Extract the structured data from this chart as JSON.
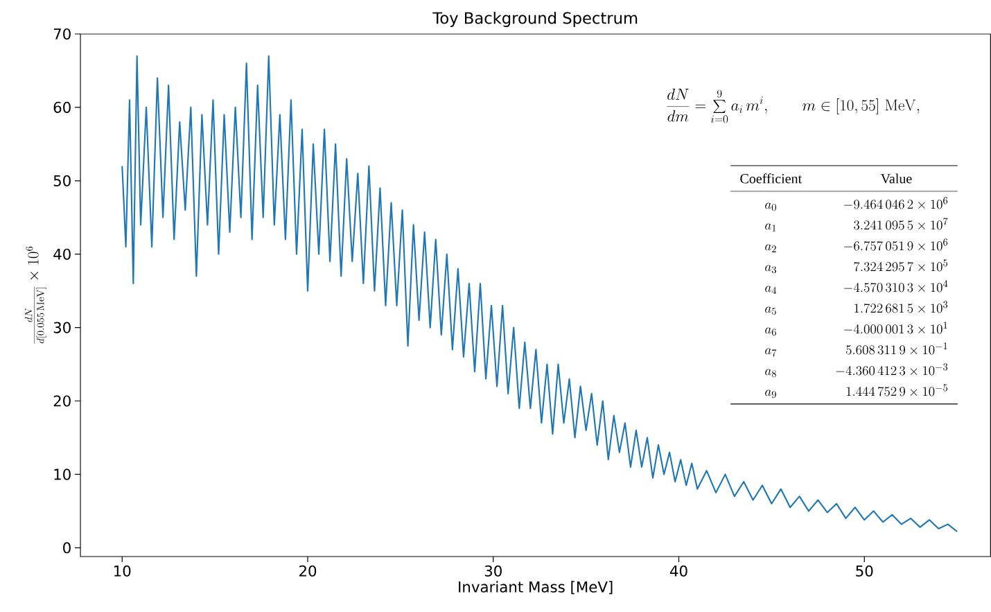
{
  "chart_data": {
    "type": "line",
    "title": "Toy Background Spectrum",
    "xlabel": "Invariant Mass [MeV]",
    "ylabel": "\\frac{dN}{d[0.055\\,\\mathrm{MeV}]}\\times 10^{6}",
    "color": "#1f77b4",
    "xlim": [
      7.75,
      56.8
    ],
    "ylim": [
      -1.2,
      70
    ],
    "xticks": [
      10,
      20,
      30,
      40,
      50
    ],
    "yticks": [
      0,
      10,
      20,
      30,
      40,
      50,
      60,
      70
    ],
    "x": [
      10.0,
      10.2,
      10.4,
      10.6,
      10.8,
      11.0,
      11.3,
      11.6,
      11.9,
      12.2,
      12.5,
      12.8,
      13.1,
      13.4,
      13.7,
      14.0,
      14.3,
      14.6,
      14.9,
      15.2,
      15.5,
      15.8,
      16.1,
      16.4,
      16.7,
      17.0,
      17.3,
      17.6,
      17.9,
      18.2,
      18.5,
      18.8,
      19.1,
      19.4,
      19.7,
      20.0,
      20.3,
      20.6,
      20.9,
      21.2,
      21.5,
      21.8,
      22.1,
      22.4,
      22.7,
      23.0,
      23.3,
      23.6,
      23.9,
      24.2,
      24.5,
      24.8,
      25.1,
      25.4,
      25.7,
      26.0,
      26.3,
      26.6,
      26.9,
      27.2,
      27.5,
      27.8,
      28.1,
      28.4,
      28.7,
      29.0,
      29.3,
      29.6,
      29.9,
      30.2,
      30.5,
      30.8,
      31.1,
      31.4,
      31.7,
      32.0,
      32.3,
      32.6,
      32.9,
      33.2,
      33.5,
      33.8,
      34.1,
      34.4,
      34.7,
      35.0,
      35.3,
      35.6,
      35.9,
      36.2,
      36.5,
      36.8,
      37.1,
      37.4,
      37.7,
      38.0,
      38.3,
      38.6,
      38.9,
      39.2,
      39.5,
      39.8,
      40.1,
      40.4,
      40.7,
      41.0,
      41.5,
      42.0,
      42.5,
      43.0,
      43.5,
      44.0,
      44.5,
      45.0,
      45.5,
      46.0,
      46.5,
      47.0,
      47.5,
      48.0,
      48.5,
      49.0,
      49.5,
      50.0,
      50.5,
      51.0,
      51.5,
      52.0,
      52.5,
      53.0,
      53.5,
      54.0,
      54.5,
      55.0
    ],
    "values": [
      52,
      41,
      61,
      36,
      67,
      44,
      60,
      41,
      64,
      45,
      63,
      42,
      58,
      46,
      60,
      37,
      59,
      44,
      61,
      40,
      59,
      43,
      60,
      45,
      66,
      42,
      63,
      45,
      67,
      44,
      59,
      42,
      61,
      40,
      57,
      35,
      55,
      40,
      57,
      39,
      55,
      37,
      53,
      39,
      51,
      36,
      52,
      35,
      49,
      33,
      47,
      33,
      46,
      27.5,
      44,
      31,
      43,
      30,
      42,
      29,
      40,
      27,
      38,
      26,
      36,
      24,
      36,
      23,
      33,
      22,
      33,
      21,
      30,
      19,
      28,
      19,
      27,
      17,
      25,
      15.5,
      25,
      17,
      23,
      15,
      22,
      16,
      21,
      14,
      20,
      12,
      18,
      13,
      17,
      11,
      16,
      11,
      15,
      9.5,
      14,
      10,
      13,
      9,
      12,
      8.5,
      11.5,
      8,
      10.5,
      7.5,
      10,
      7,
      9,
      6.5,
      8.5,
      6,
      8,
      5.5,
      7,
      5,
      6.5,
      4.8,
      6,
      4,
      5.5,
      3.8,
      5,
      3.5,
      4.5,
      3.2,
      4,
      2.8,
      3.8,
      2.6,
      3.2,
      2.2
    ],
    "annotations": [
      "\\frac{dN}{dm} = \\sum_{i=0}^{9} a_i\\, m^i, \\qquad m \\in [10,55]\\ \\mathrm{MeV},",
      "Coefficient",
      "Value",
      "a_0",
      "-9.464\\,046\\,2 \\times 10^{6}",
      "a_1",
      "3.241\\,095\\,5 \\times 10^{7}",
      "a_2",
      "-6.757\\,051\\,9 \\times 10^{6}",
      "a_3",
      "7.324\\,295\\,7 \\times 10^{5}",
      "a_4",
      "-4.570\\,310\\,3 \\times 10^{4}",
      "a_5",
      "1.722\\,681\\,5 \\times 10^{3}",
      "a_6",
      "-4.000\\,001\\,3 \\times 10^{1}",
      "a_7",
      "5.608\\,311\\,9 \\times 10^{-1}",
      "a_8",
      "-4.360\\,412\\,3 \\times 10^{-3}",
      "a_9",
      "1.444\\,752\\,9 \\times 10^{-5}"
    ]
  }
}
